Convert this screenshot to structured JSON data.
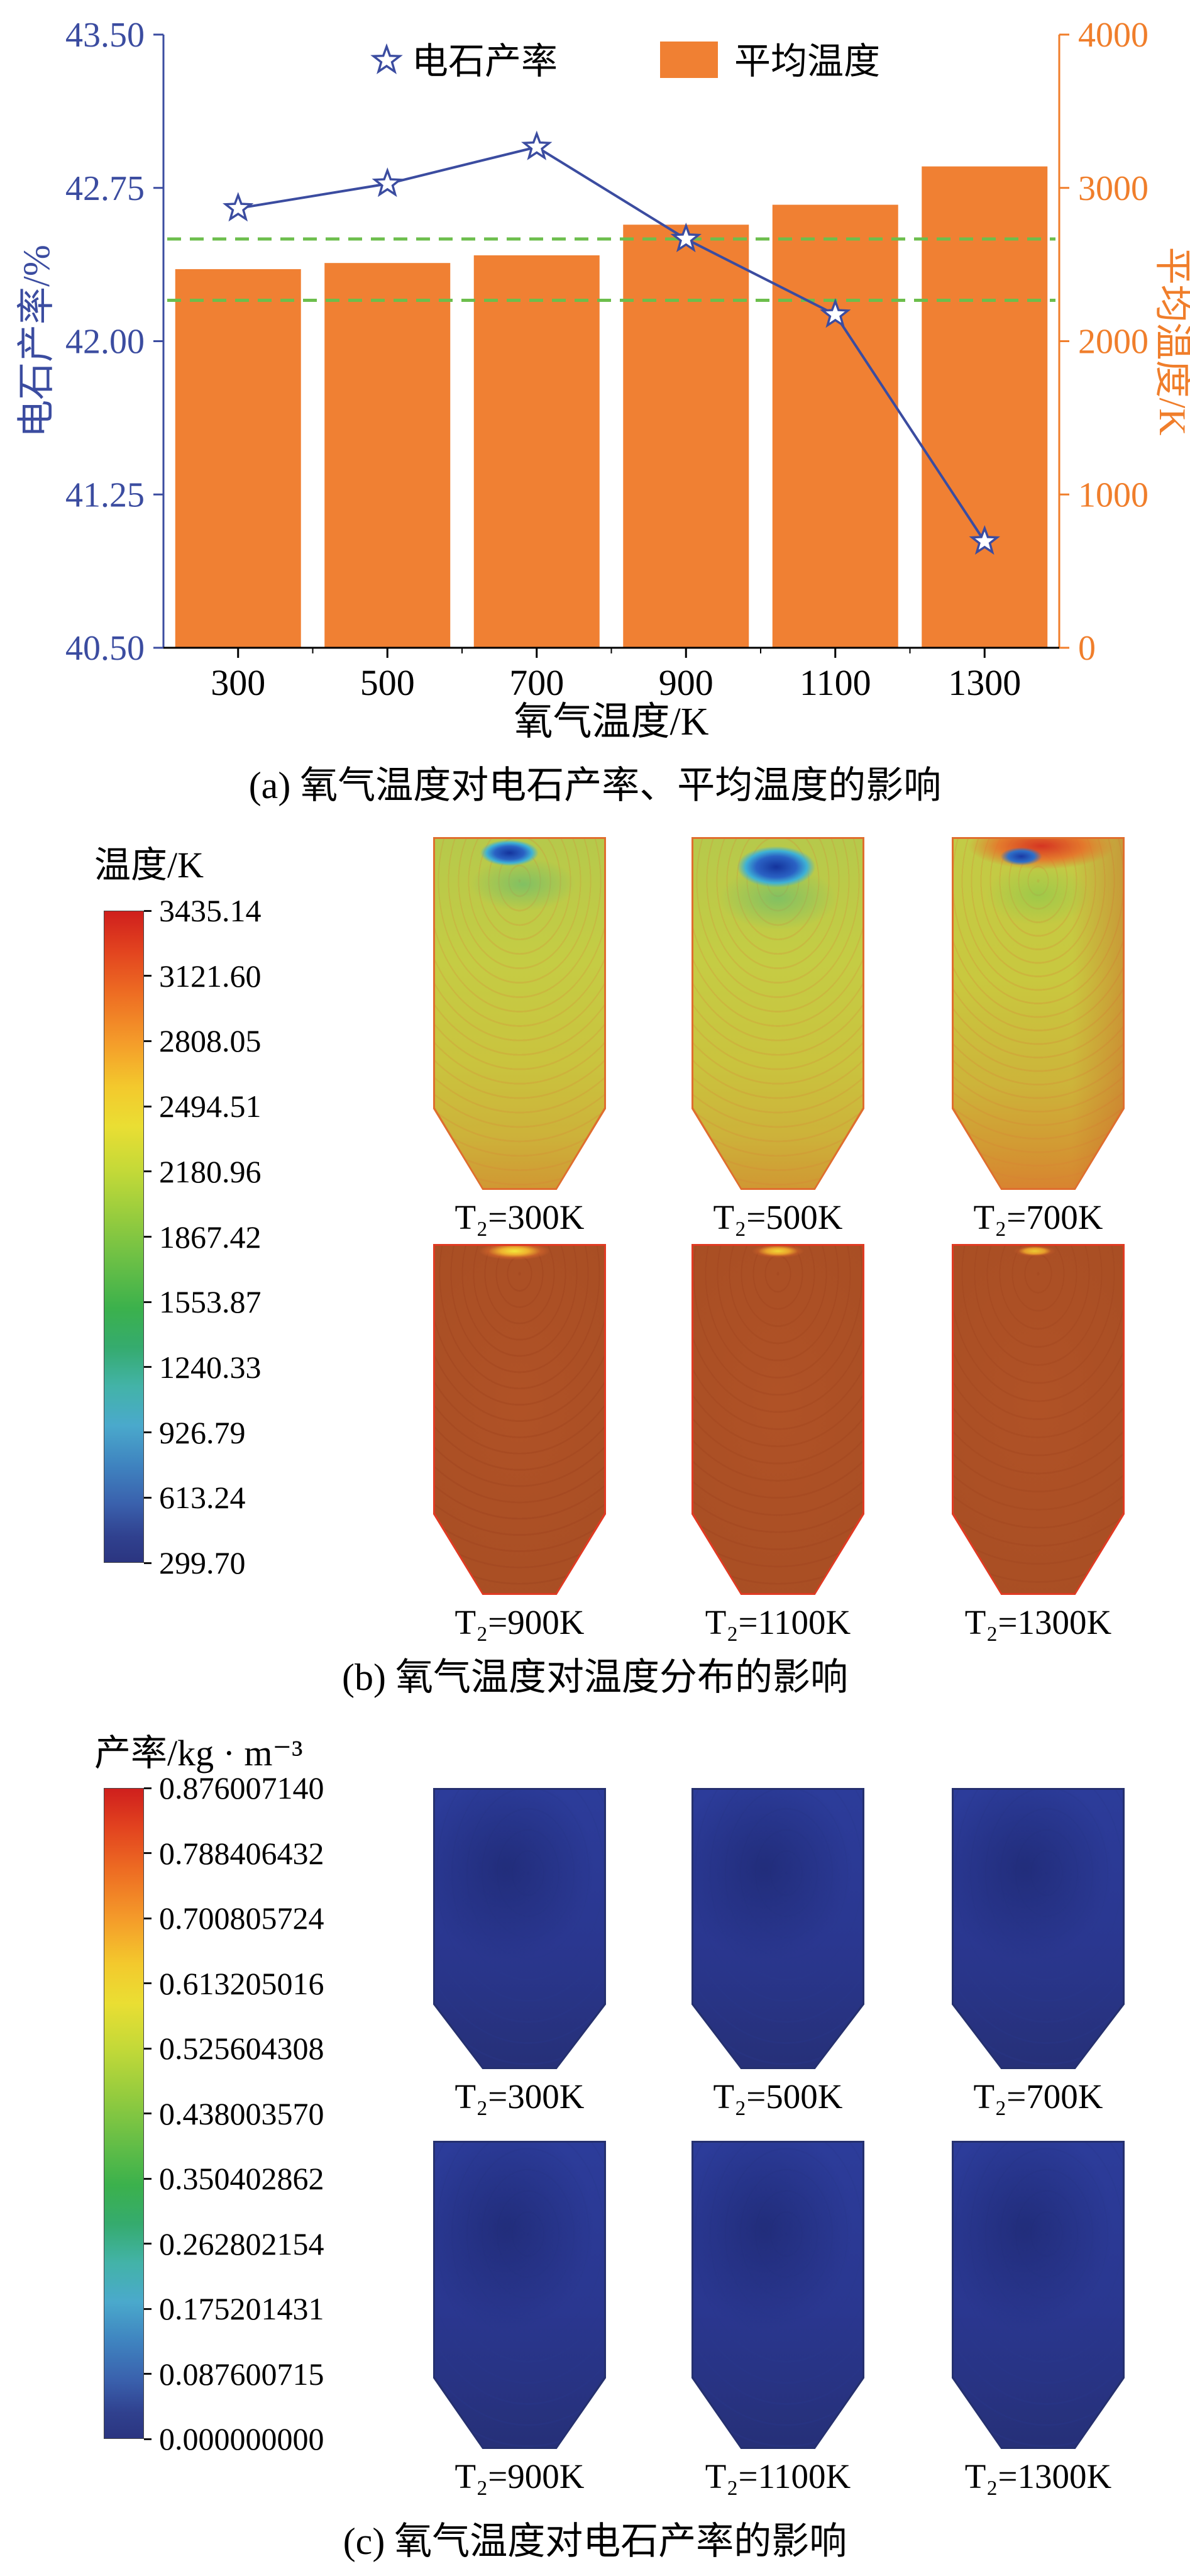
{
  "chart_data": {
    "type": "bar",
    "title": "",
    "categories": [
      "300",
      "500",
      "700",
      "900",
      "1100",
      "1300"
    ],
    "xlabel": "氧气温度/K",
    "ylabel_left": "电石产率/%",
    "ylabel_right": "平均温度/K",
    "ylim_left": [
      40.5,
      43.5
    ],
    "yticks_left": [
      "43.50",
      "42.75",
      "42.00",
      "41.25",
      "40.50"
    ],
    "ylim_right": [
      0,
      4000
    ],
    "yticks_right": [
      "4000",
      "3000",
      "2000",
      "1000",
      "0"
    ],
    "series": [
      {
        "name": "平均温度",
        "kind": "bar",
        "axis": "right",
        "color": "#F08033",
        "values": [
          2470,
          2510,
          2560,
          2760,
          2890,
          3140
        ]
      },
      {
        "name": "电石产率",
        "kind": "line",
        "axis": "left",
        "color": "#3B4CA0",
        "marker": "open-star",
        "values": [
          42.65,
          42.77,
          42.95,
          42.5,
          42.13,
          41.02
        ]
      }
    ],
    "reference_lines": [
      {
        "axis": "left",
        "value": 42.5,
        "color": "#6CBE4C",
        "style": "dashed"
      },
      {
        "axis": "left",
        "value": 42.2,
        "color": "#6CBE4C",
        "style": "dashed"
      }
    ],
    "legend_position": "top-inside",
    "grid": false
  },
  "colors": {
    "bar": "#F08033",
    "line_axis_left": "#3B4CA0",
    "axis_right": "#F07E2B",
    "reference": "#6CBE4C"
  },
  "panel_a": {
    "caption": "(a) 氧气温度对电石产率、平均温度的影响"
  },
  "panel_b": {
    "header": "温度/K",
    "colorbar_ticks": [
      "3435.14",
      "3121.60",
      "2808.05",
      "2494.51",
      "2180.96",
      "1867.42",
      "1553.87",
      "1240.33",
      "926.79",
      "613.24",
      "299.70"
    ],
    "plots": [
      {
        "label": "T₂=300K"
      },
      {
        "label": "T₂=500K"
      },
      {
        "label": "T₂=700K"
      },
      {
        "label": "T₂=900K"
      },
      {
        "label": "T₂=1100K"
      },
      {
        "label": "T₂=1300K"
      }
    ],
    "caption": "(b) 氧气温度对温度分布的影响"
  },
  "panel_c": {
    "header": "产率/kg · m⁻³",
    "colorbar_ticks": [
      "0.876007140",
      "0.788406432",
      "0.700805724",
      "0.613205016",
      "0.525604308",
      "0.438003570",
      "0.350402862",
      "0.262802154",
      "0.175201431",
      "0.087600715",
      "0.000000000"
    ],
    "plots": [
      {
        "label": "T₂=300K"
      },
      {
        "label": "T₂=500K"
      },
      {
        "label": "T₂=700K"
      },
      {
        "label": "T₂=900K"
      },
      {
        "label": "T₂=1100K"
      },
      {
        "label": "T₂=1300K"
      }
    ],
    "caption": "(c) 氧气温度对电石产率的影响"
  }
}
